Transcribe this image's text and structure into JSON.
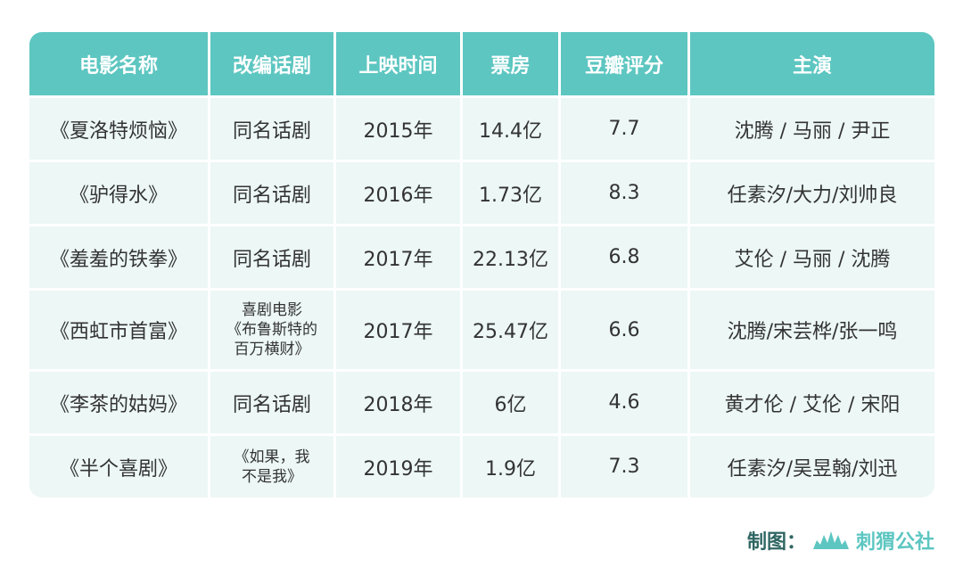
{
  "table": {
    "headers": [
      "电影名称",
      "改编话剧",
      "上映时间",
      "票房",
      "豆瓣评分",
      "主演"
    ],
    "rows": [
      {
        "title": "《夏洛特烦恼》",
        "source": [
          "同名话剧"
        ],
        "year": "2015年",
        "box": "14.4亿",
        "score": "7.7",
        "cast": "沈腾 / 马丽 / 尹正"
      },
      {
        "title": "《驴得水》",
        "source": [
          "同名话剧"
        ],
        "year": "2016年",
        "box": "1.73亿",
        "score": "8.3",
        "cast": "任素汐/大力/刘帅良"
      },
      {
        "title": "《羞羞的铁拳》",
        "source": [
          "同名话剧"
        ],
        "year": "2017年",
        "box": "22.13亿",
        "score": "6.8",
        "cast": "艾伦 / 马丽 / 沈腾"
      },
      {
        "title": "《西虹市首富》",
        "source": [
          "喜剧电影",
          "《布鲁斯特的",
          "百万横财》"
        ],
        "year": "2017年",
        "box": "25.47亿",
        "score": "6.6",
        "cast": "沈腾/宋芸桦/张一鸣"
      },
      {
        "title": "《李茶的姑妈》",
        "source": [
          "同名话剧"
        ],
        "year": "2018年",
        "box": "6亿",
        "score": "4.6",
        "cast": "黄才伦 / 艾伦 / 宋阳"
      },
      {
        "title": "《半个喜剧》",
        "source": [
          "《如果，我",
          "不是我》"
        ],
        "year": "2019年",
        "box": "1.9亿",
        "score": "7.3",
        "cast": "任素汐/吴昱翰/刘迅"
      }
    ]
  },
  "footer": {
    "label": "制图：",
    "brand": "刺猬公社"
  },
  "colors": {
    "header_bg": "#5dc6c1",
    "row_bg": "#ecf7f6",
    "footer_text": "#2f6663"
  }
}
